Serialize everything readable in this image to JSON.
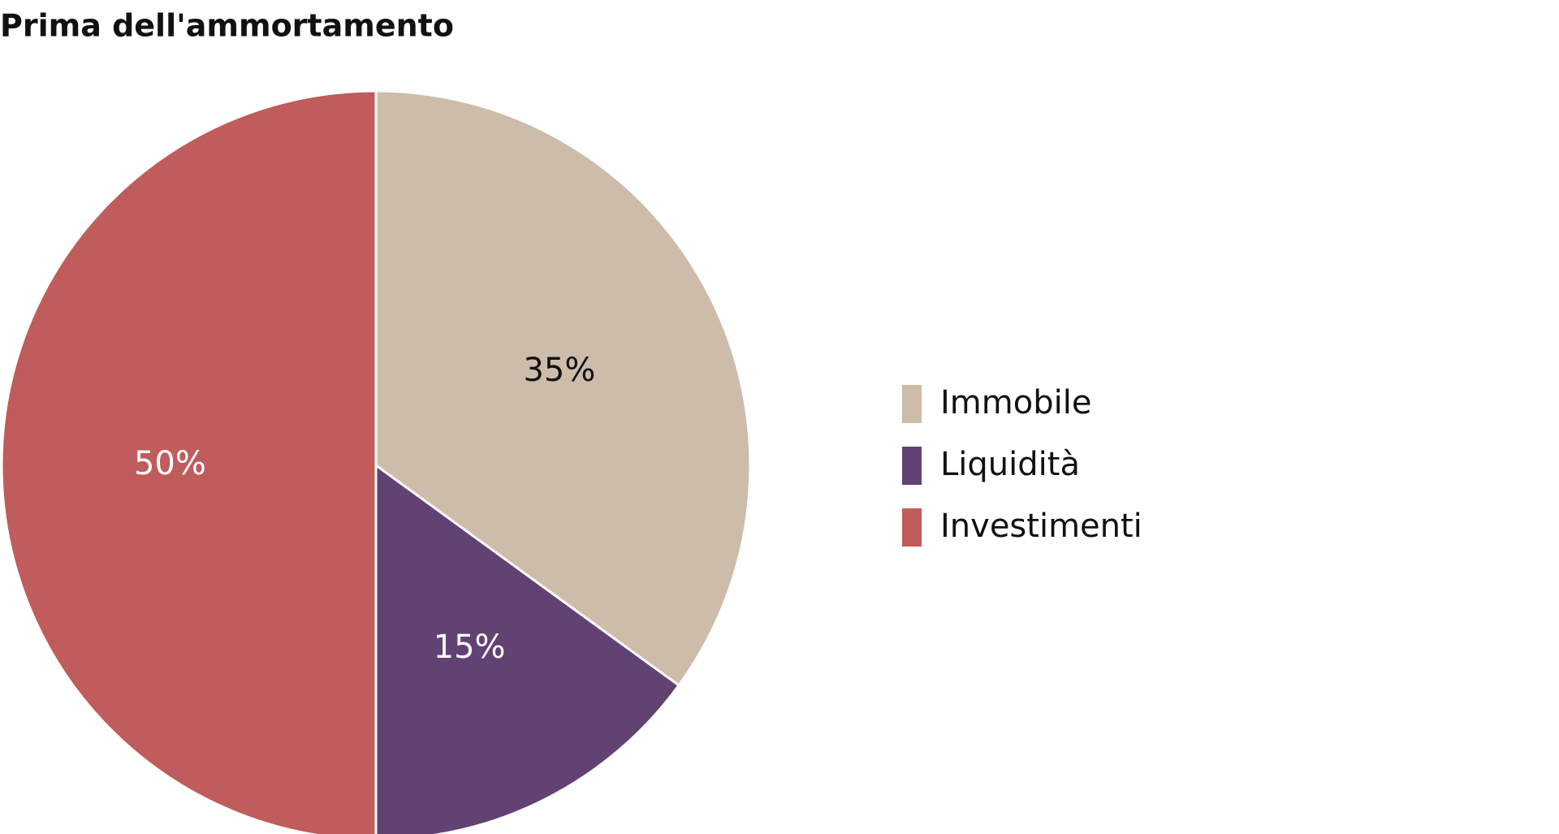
{
  "chart_data": {
    "type": "pie",
    "title": "Prima dell'ammortamento",
    "categories": [
      "Immobile",
      "Liquidità",
      "Investimenti"
    ],
    "values": [
      35,
      15,
      50
    ],
    "value_labels": [
      "35%",
      "15%",
      "50%"
    ],
    "colors": [
      "#cdbcaa",
      "#624173",
      "#c05c5b"
    ],
    "legend": "right"
  }
}
